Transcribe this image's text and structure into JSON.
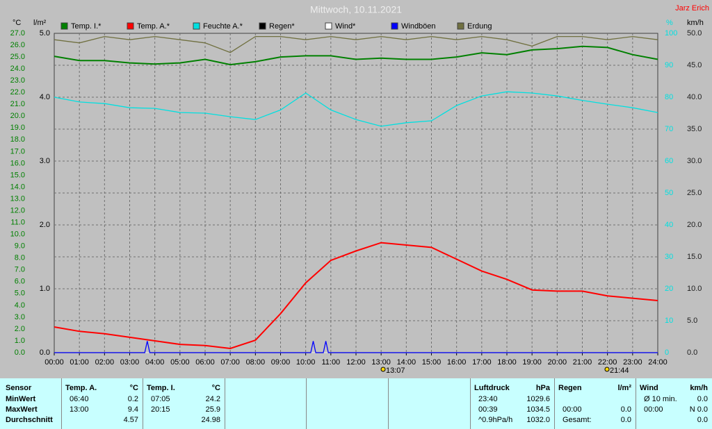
{
  "chart_data": {
    "type": "line",
    "title": "Mittwoch, 10.11.2021",
    "author": "Jarz Erich",
    "ylabel": "°C",
    "y3label": "l/m²",
    "y2label": "%",
    "y4label": "km/h",
    "ycolor": "#008000",
    "y3color": "#000000",
    "y2color": "#00e0e0",
    "y4color": "#202020",
    "grid": true,
    "x": [
      0,
      1,
      2,
      3,
      4,
      5,
      6,
      7,
      8,
      9,
      10,
      11,
      12,
      13,
      14,
      15,
      16,
      17,
      18,
      19,
      20,
      21,
      22,
      23,
      24
    ],
    "xlim": [
      0,
      24
    ],
    "xticks": [
      {
        "value": 0,
        "label": "00:00"
      },
      {
        "value": 1,
        "label": "01:00"
      },
      {
        "value": 2,
        "label": "02:00"
      },
      {
        "value": 3,
        "label": "03:00"
      },
      {
        "value": 4,
        "label": "04:00"
      },
      {
        "value": 5,
        "label": "05:00"
      },
      {
        "value": 6,
        "label": "06:00"
      },
      {
        "value": 7,
        "label": "07:00"
      },
      {
        "value": 8,
        "label": "08:00"
      },
      {
        "value": 9,
        "label": "09:00"
      },
      {
        "value": 10,
        "label": "10:00"
      },
      {
        "value": 11,
        "label": "11:00"
      },
      {
        "value": 12,
        "label": "12:00"
      },
      {
        "value": 13,
        "label": "13:00"
      },
      {
        "value": 14,
        "label": "14:00"
      },
      {
        "value": 15,
        "label": "15:00"
      },
      {
        "value": 16,
        "label": "16:00"
      },
      {
        "value": 17,
        "label": "17:00"
      },
      {
        "value": 18,
        "label": "18:00"
      },
      {
        "value": 19,
        "label": "19:00"
      },
      {
        "value": 20,
        "label": "20:00"
      },
      {
        "value": 21,
        "label": "21:00"
      },
      {
        "value": 22,
        "label": "22:00"
      },
      {
        "value": 23,
        "label": "23:00"
      },
      {
        "value": 24,
        "label": "24:00"
      }
    ],
    "ylim": [
      0,
      27
    ],
    "yticks": [
      {
        "value": 0,
        "label": "0.0"
      },
      {
        "value": 1,
        "label": "1.0"
      },
      {
        "value": 2,
        "label": "2.0"
      },
      {
        "value": 3,
        "label": "3.0"
      },
      {
        "value": 4,
        "label": "4.0"
      },
      {
        "value": 5,
        "label": "5.0"
      },
      {
        "value": 6,
        "label": "6.0"
      },
      {
        "value": 7,
        "label": "7.0"
      },
      {
        "value": 8,
        "label": "8.0"
      },
      {
        "value": 9,
        "label": "9.0"
      },
      {
        "value": 10,
        "label": "10.0"
      },
      {
        "value": 11,
        "label": "11.0"
      },
      {
        "value": 12,
        "label": "12.0"
      },
      {
        "value": 13,
        "label": "13.0"
      },
      {
        "value": 14,
        "label": "14.0"
      },
      {
        "value": 15,
        "label": "15.0"
      },
      {
        "value": 16,
        "label": "16.0"
      },
      {
        "value": 17,
        "label": "17.0"
      },
      {
        "value": 18,
        "label": "18.0"
      },
      {
        "value": 19,
        "label": "19.0"
      },
      {
        "value": 20,
        "label": "20.0"
      },
      {
        "value": 21,
        "label": "21.0"
      },
      {
        "value": 22,
        "label": "22.0"
      },
      {
        "value": 23,
        "label": "23.0"
      },
      {
        "value": 24,
        "label": "24.0"
      },
      {
        "value": 25,
        "label": "25.0"
      },
      {
        "value": 26,
        "label": "26.0"
      },
      {
        "value": 27,
        "label": "27.0"
      }
    ],
    "y3lim": [
      0,
      5
    ],
    "y3ticks": [
      {
        "value": 0,
        "label": "0.0"
      },
      {
        "value": 1,
        "label": "1.0"
      },
      {
        "value": 2,
        "label": "2.0"
      },
      {
        "value": 3,
        "label": "3.0"
      },
      {
        "value": 4,
        "label": "4.0"
      },
      {
        "value": 5,
        "label": "5.0"
      }
    ],
    "y2lim": [
      0,
      100
    ],
    "y2ticks": [
      0,
      10,
      20,
      30,
      40,
      50,
      60,
      70,
      80,
      90,
      100
    ],
    "y4lim": [
      0,
      50
    ],
    "y4ticks": [
      {
        "value": 0,
        "label": "0.0"
      },
      {
        "value": 5,
        "label": "5.0"
      },
      {
        "value": 10,
        "label": "10.0"
      },
      {
        "value": 15,
        "label": "15.0"
      },
      {
        "value": 20,
        "label": "20.0"
      },
      {
        "value": 25,
        "label": "25.0"
      },
      {
        "value": 30,
        "label": "30.0"
      },
      {
        "value": 35,
        "label": "35.0"
      },
      {
        "value": 40,
        "label": "40.0"
      },
      {
        "value": 45,
        "label": "45.0"
      },
      {
        "value": 50,
        "label": "50.0"
      }
    ],
    "series": [
      {
        "name": "Temp. I.*",
        "color": "#008000",
        "axis": "y",
        "values": [
          25.06,
          24.7,
          24.7,
          24.5,
          24.4,
          24.5,
          24.8,
          24.35,
          24.6,
          25.0,
          25.1,
          25.1,
          24.8,
          24.9,
          24.8,
          24.8,
          25.0,
          25.35,
          25.2,
          25.6,
          25.7,
          25.9,
          25.8,
          25.2,
          24.8
        ]
      },
      {
        "name": "Temp. A.*",
        "color": "#ff0000",
        "axis": "y",
        "values": [
          2.17,
          1.8,
          1.6,
          1.3,
          1.0,
          0.7,
          0.6,
          0.35,
          1.05,
          3.3,
          5.9,
          7.8,
          8.6,
          9.3,
          9.1,
          8.9,
          7.9,
          6.9,
          6.2,
          5.3,
          5.2,
          5.2,
          4.8,
          4.6,
          4.4
        ]
      },
      {
        "name": "Feuchte A.*",
        "color": "#00e0e0",
        "axis": "y2",
        "values": [
          80,
          78.5,
          78,
          76.7,
          76.5,
          75.2,
          75,
          73.9,
          73,
          76,
          81.3,
          76,
          73,
          70.9,
          72,
          72.6,
          77.4,
          80.4,
          81.7,
          81.3,
          80.4,
          79,
          77.8,
          76.7,
          75.2
        ]
      },
      {
        "name": "Regen*",
        "color": "#000000",
        "axis": "y3",
        "x": [
          0,
          24
        ],
        "values": [
          0,
          0
        ]
      },
      {
        "name": "Wind*",
        "color": "#ffffff",
        "axis": "y4",
        "x": [
          0,
          24
        ],
        "values": [
          0,
          0
        ]
      },
      {
        "name": "Windböen",
        "color": "#0000ff",
        "axis": "y4",
        "x": [
          0,
          3.6,
          3.7,
          3.8,
          10.2,
          10.3,
          10.4,
          10.7,
          10.8,
          10.9,
          24
        ],
        "values": [
          0,
          0,
          1.8,
          0,
          0,
          1.8,
          0,
          0,
          1.8,
          0,
          0
        ]
      },
      {
        "name": "Erdung",
        "color": "#707040",
        "axis": "y2",
        "values": [
          98,
          97,
          99,
          98,
          99,
          98,
          97,
          94,
          99,
          99,
          98,
          99,
          98,
          99,
          98,
          99,
          98,
          99,
          98,
          96,
          99,
          99,
          98,
          99,
          98
        ]
      }
    ],
    "annotations": [
      "13:07",
      "21:44"
    ]
  },
  "table": {
    "sensor": {
      "header": "Sensor",
      "rows": [
        "MinWert",
        "MaxWert",
        "Durchschnitt"
      ]
    },
    "groups": [
      {
        "name": "Temp. A.",
        "unit": "°C",
        "rows": [
          {
            "time": "06:40",
            "value": "0.2"
          },
          {
            "time": "13:00",
            "value": "9.4"
          },
          {
            "value": "4.57"
          }
        ]
      },
      {
        "name": "Temp. I.",
        "unit": "°C",
        "rows": [
          {
            "time": "07:05",
            "value": "24.2"
          },
          {
            "time": "20:15",
            "value": "25.9"
          },
          {
            "value": "24.98"
          }
        ]
      },
      {
        "name": "Luftdruck",
        "unit": "hPa",
        "rows": [
          {
            "time": "23:40",
            "value": "1029.6"
          },
          {
            "time": "00:39",
            "value": "1034.5"
          },
          {
            "time": "^0.9hPa/h",
            "value": "1032.0"
          }
        ]
      },
      {
        "name": "Regen",
        "unit": "l/m²",
        "rows": [
          {},
          {
            "time": "00:00",
            "value": "0.0"
          },
          {
            "time": "Gesamt:",
            "value": "0.0"
          }
        ]
      },
      {
        "name": "Wind",
        "unit": "km/h",
        "rows": [
          {
            "time": "Ø 10 min.",
            "value": "0.0"
          },
          {
            "time": "00:00",
            "value": "N 0.0"
          },
          {
            "value": "0.0"
          }
        ]
      }
    ]
  }
}
